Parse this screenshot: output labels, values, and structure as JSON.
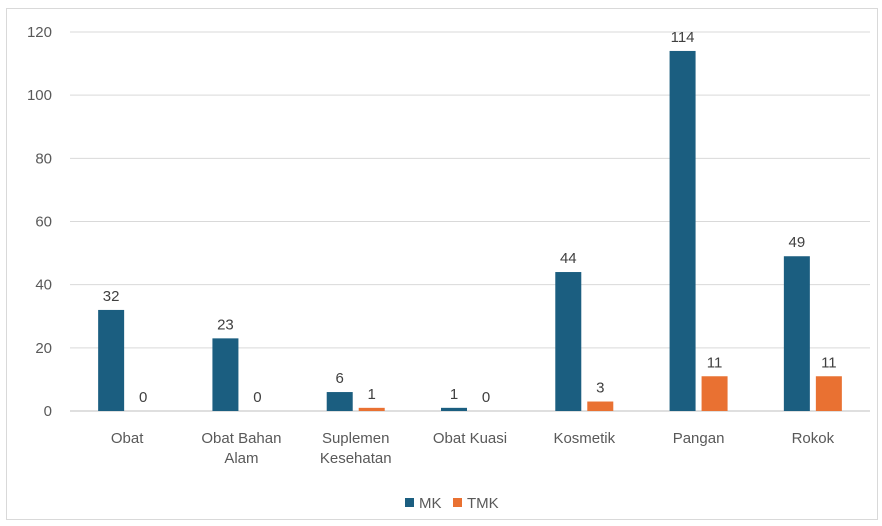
{
  "chart_data": {
    "type": "bar",
    "categories": [
      "Obat",
      "Obat Bahan Alam",
      "Suplemen Kesehatan",
      "Obat Kuasi",
      "Kosmetik",
      "Pangan",
      "Rokok"
    ],
    "category_label_lines": [
      [
        "Obat"
      ],
      [
        "Obat Bahan",
        "Alam"
      ],
      [
        "Suplemen",
        "Kesehatan"
      ],
      [
        "Obat Kuasi"
      ],
      [
        "Kosmetik"
      ],
      [
        "Pangan"
      ],
      [
        "Rokok"
      ]
    ],
    "series": [
      {
        "name": "MK",
        "color": "#1b5e80",
        "values": [
          32,
          23,
          6,
          1,
          44,
          114,
          49
        ]
      },
      {
        "name": "TMK",
        "color": "#e97132",
        "values": [
          0,
          0,
          1,
          0,
          3,
          11,
          11
        ]
      }
    ],
    "yticks": [
      0,
      20,
      40,
      60,
      80,
      100,
      120
    ],
    "ylim": [
      0,
      120
    ],
    "grid": true,
    "legend_position": "bottom",
    "title": "",
    "xlabel": "",
    "ylabel": ""
  }
}
